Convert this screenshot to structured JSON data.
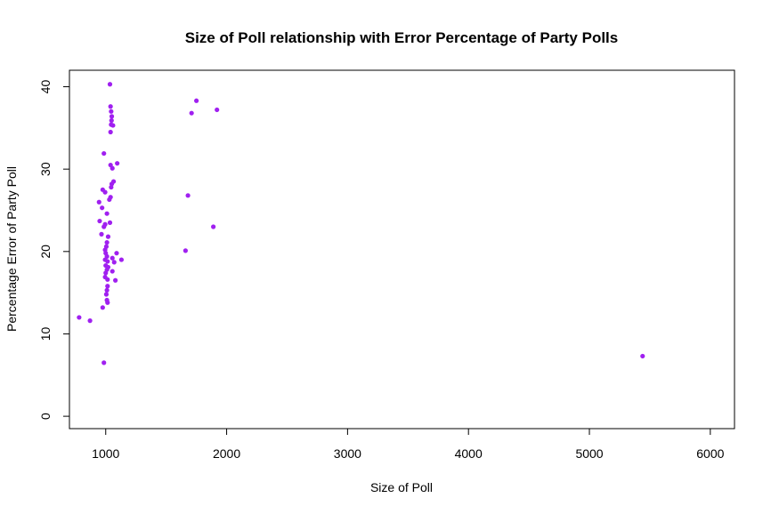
{
  "chart_data": {
    "type": "scatter",
    "title": "Size of Poll relationship with Error Percentage of Party Polls",
    "xlabel": "Size of Poll",
    "ylabel": "Percentage Error of Party Poll",
    "xlim": [
      700,
      6200
    ],
    "ylim": [
      -1.5,
      42
    ],
    "xticks": [
      1000,
      2000,
      3000,
      4000,
      5000,
      6000
    ],
    "yticks": [
      0,
      10,
      20,
      30,
      40
    ],
    "grid": false,
    "point_color": "#a020f0",
    "series": [
      {
        "points": [
          {
            "x": 780,
            "y": 12.0
          },
          {
            "x": 870,
            "y": 11.6
          },
          {
            "x": 985,
            "y": 6.5
          },
          {
            "x": 5440,
            "y": 7.3
          },
          {
            "x": 1035,
            "y": 40.3
          },
          {
            "x": 1040,
            "y": 37.6
          },
          {
            "x": 1045,
            "y": 37.0
          },
          {
            "x": 1050,
            "y": 36.4
          },
          {
            "x": 1048,
            "y": 35.9
          },
          {
            "x": 1045,
            "y": 35.4
          },
          {
            "x": 1060,
            "y": 35.3
          },
          {
            "x": 1040,
            "y": 34.5
          },
          {
            "x": 985,
            "y": 31.9
          },
          {
            "x": 1095,
            "y": 30.7
          },
          {
            "x": 1040,
            "y": 30.5
          },
          {
            "x": 1055,
            "y": 30.1
          },
          {
            "x": 1065,
            "y": 28.5
          },
          {
            "x": 1050,
            "y": 28.2
          },
          {
            "x": 1045,
            "y": 27.8
          },
          {
            "x": 975,
            "y": 27.5
          },
          {
            "x": 995,
            "y": 27.2
          },
          {
            "x": 1040,
            "y": 26.6
          },
          {
            "x": 1030,
            "y": 26.3
          },
          {
            "x": 945,
            "y": 26.0
          },
          {
            "x": 970,
            "y": 25.3
          },
          {
            "x": 1010,
            "y": 24.6
          },
          {
            "x": 950,
            "y": 23.7
          },
          {
            "x": 1035,
            "y": 23.5
          },
          {
            "x": 995,
            "y": 23.3
          },
          {
            "x": 985,
            "y": 23.0
          },
          {
            "x": 965,
            "y": 22.1
          },
          {
            "x": 1020,
            "y": 21.8
          },
          {
            "x": 1010,
            "y": 21.1
          },
          {
            "x": 1005,
            "y": 20.6
          },
          {
            "x": 995,
            "y": 20.2
          },
          {
            "x": 1000,
            "y": 19.8
          },
          {
            "x": 1090,
            "y": 19.8
          },
          {
            "x": 1010,
            "y": 19.4
          },
          {
            "x": 1055,
            "y": 19.2
          },
          {
            "x": 995,
            "y": 19.0
          },
          {
            "x": 1130,
            "y": 19.0
          },
          {
            "x": 1015,
            "y": 18.8
          },
          {
            "x": 1070,
            "y": 18.7
          },
          {
            "x": 1000,
            "y": 18.3
          },
          {
            "x": 1020,
            "y": 18.1
          },
          {
            "x": 1010,
            "y": 17.8
          },
          {
            "x": 1055,
            "y": 17.6
          },
          {
            "x": 1000,
            "y": 17.4
          },
          {
            "x": 995,
            "y": 16.9
          },
          {
            "x": 1015,
            "y": 16.6
          },
          {
            "x": 1080,
            "y": 16.5
          },
          {
            "x": 1015,
            "y": 15.8
          },
          {
            "x": 1010,
            "y": 15.3
          },
          {
            "x": 1005,
            "y": 14.8
          },
          {
            "x": 1010,
            "y": 14.1
          },
          {
            "x": 1015,
            "y": 13.8
          },
          {
            "x": 975,
            "y": 13.2
          },
          {
            "x": 1750,
            "y": 38.3
          },
          {
            "x": 1920,
            "y": 37.2
          },
          {
            "x": 1710,
            "y": 36.8
          },
          {
            "x": 1680,
            "y": 26.8
          },
          {
            "x": 1890,
            "y": 23.0
          },
          {
            "x": 1660,
            "y": 20.1
          }
        ]
      }
    ]
  }
}
